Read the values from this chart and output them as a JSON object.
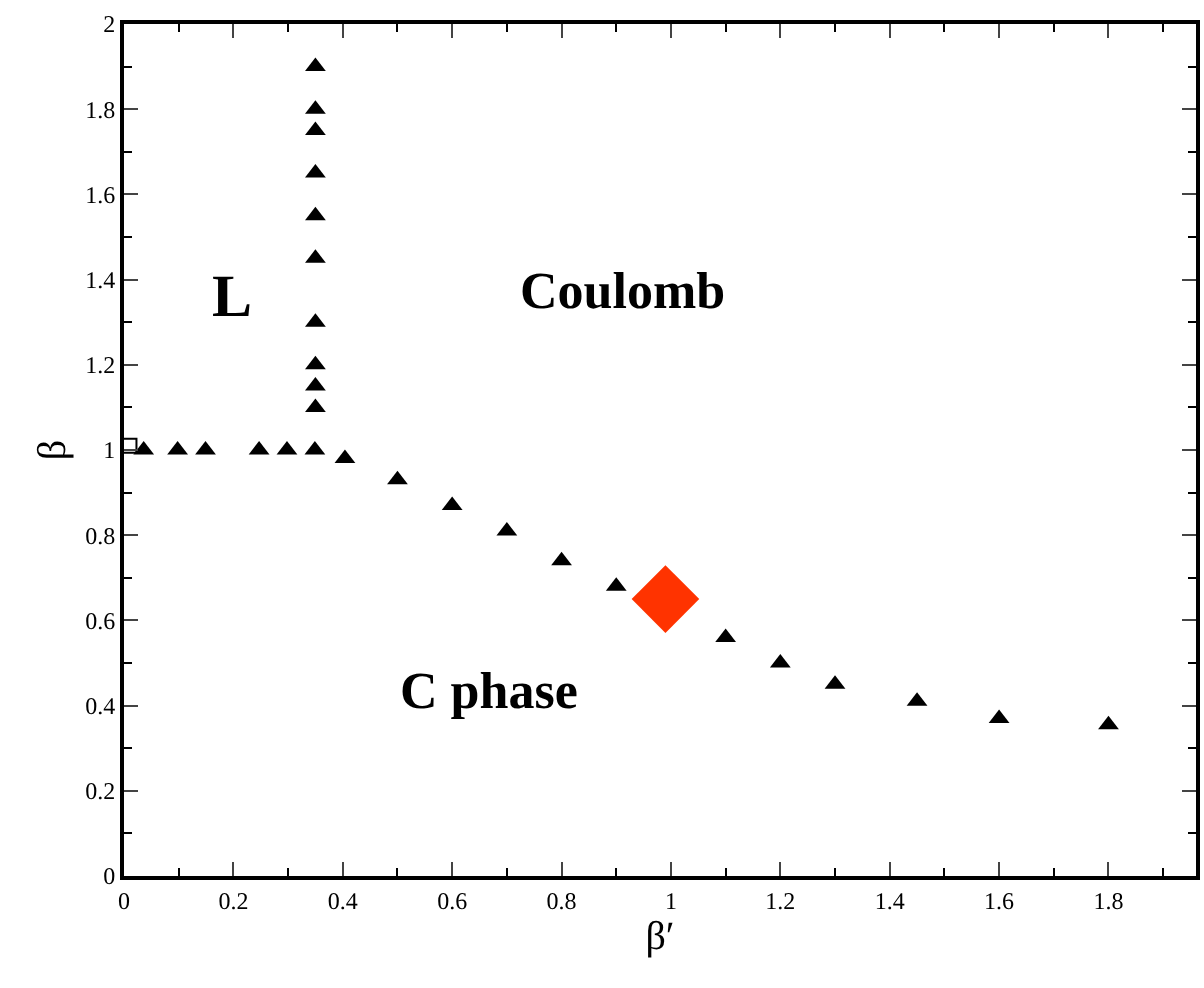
{
  "chart_data": {
    "type": "scatter",
    "xlabel": "β′",
    "ylabel": "β",
    "xlim": [
      0,
      1.96
    ],
    "ylim": [
      0,
      2
    ],
    "xticks": [
      {
        "value": 0,
        "label": "0"
      },
      0.2,
      0.4,
      0.6,
      0.8,
      1,
      1.2,
      1.4,
      1.6,
      1.8
    ],
    "yticks": [
      0,
      0.2,
      0.4,
      0.6,
      0.8,
      1,
      1.2,
      1.4,
      1.6,
      1.8,
      2
    ],
    "marker": "triangle",
    "series": [
      {
        "color": "#000000",
        "x": [
          0.036,
          0.098,
          0.149,
          0.247,
          0.298,
          0.349,
          0.404,
          0.35,
          0.35,
          0.35,
          0.35,
          0.35,
          0.35,
          0.35,
          0.35,
          0.35,
          0.35,
          0.5,
          0.6,
          0.7,
          0.8,
          0.9,
          1.1,
          1.2,
          1.3,
          1.45,
          1.6,
          1.8
        ],
        "values": [
          1,
          1,
          1,
          1,
          1,
          1,
          0.98,
          1.9,
          1.8,
          1.75,
          1.65,
          1.55,
          1.45,
          1.3,
          1.2,
          1.15,
          1.1,
          0.93,
          0.87,
          0.81,
          0.74,
          0.68,
          0.56,
          0.5,
          0.45,
          0.41,
          0.37,
          0.355
        ]
      },
      {
        "color": "#000000",
        "marker": "square",
        "x": [
          0.01
        ],
        "values": [
          1.01
        ]
      },
      {
        "color": "#ff3300",
        "marker": "diamond",
        "x": [
          0.99
        ],
        "values": [
          0.65
        ]
      }
    ],
    "annotations": [
      "L",
      "Coulomb",
      "C phase"
    ]
  }
}
